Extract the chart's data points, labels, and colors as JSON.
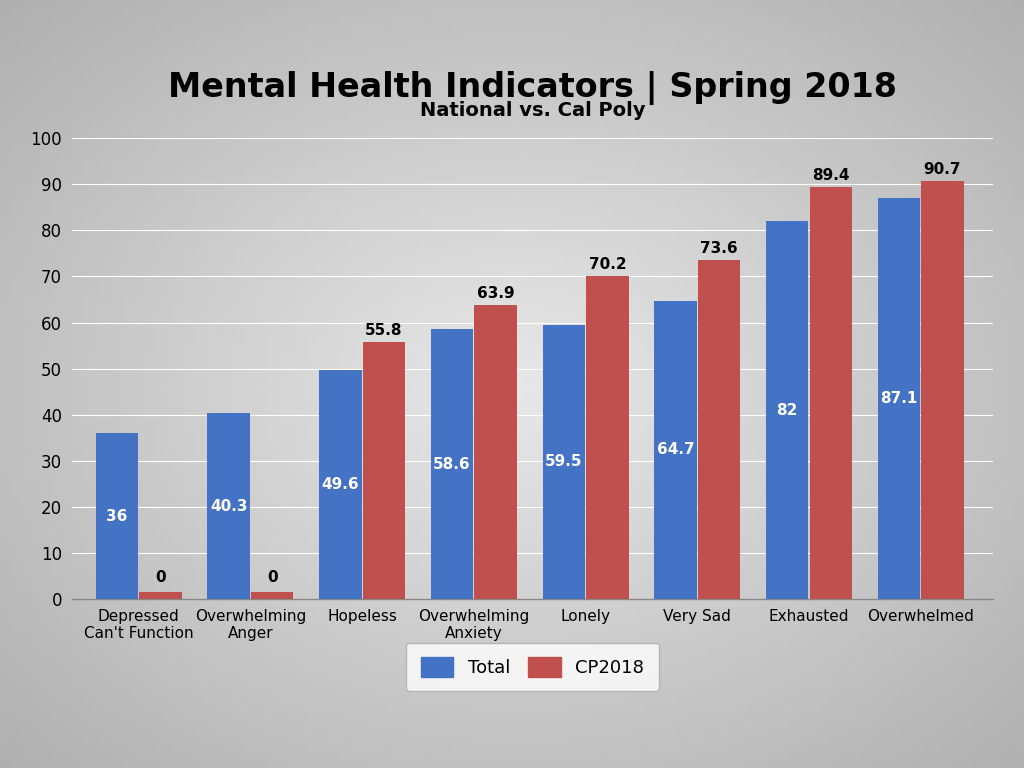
{
  "title": "Mental Health Indicators | Spring 2018",
  "subtitle": "National vs. Cal Poly",
  "categories": [
    "Depressed\nCan't Function",
    "Overwhelming\nAnger",
    "Hopeless",
    "Overwhelming\nAnxiety",
    "Lonely",
    "Very Sad",
    "Exhausted",
    "Overwhelmed"
  ],
  "total_values": [
    36,
    40.3,
    49.6,
    58.6,
    59.5,
    64.7,
    82,
    87.1
  ],
  "cp2018_values": [
    1.5,
    1.5,
    55.8,
    63.9,
    70.2,
    73.6,
    89.4,
    90.7
  ],
  "cp2018_display": [
    0,
    0,
    55.8,
    63.9,
    70.2,
    73.6,
    89.4,
    90.7
  ],
  "total_color": "#4472C4",
  "cp2018_color": "#C0504D",
  "background_color_center": "#E8E8E8",
  "background_color_edge": "#B0B0B0",
  "ylim": [
    0,
    100
  ],
  "yticks": [
    0,
    10,
    20,
    30,
    40,
    50,
    60,
    70,
    80,
    90,
    100
  ],
  "legend_labels": [
    "Total",
    "CP2018"
  ],
  "title_fontsize": 24,
  "subtitle_fontsize": 14,
  "label_fontsize": 11,
  "tick_fontsize": 12,
  "value_fontsize": 11,
  "bar_width": 0.38,
  "bar_gap": 0.01
}
